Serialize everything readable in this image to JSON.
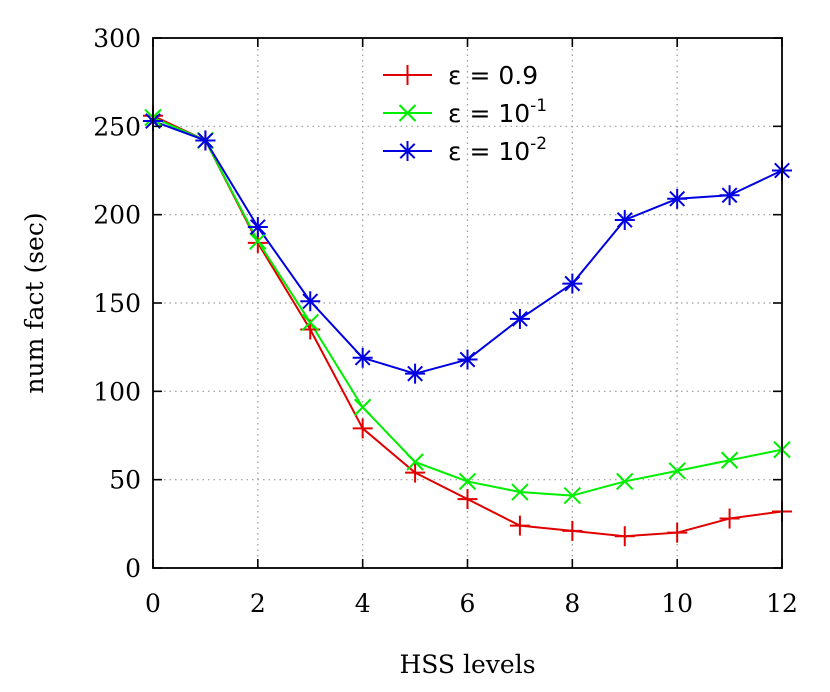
{
  "chart_data": {
    "type": "line",
    "xlabel": "HSS levels",
    "ylabel": "num fact (sec)",
    "xlim": [
      0,
      12
    ],
    "ylim": [
      0,
      300
    ],
    "xticks": [
      0,
      2,
      4,
      6,
      8,
      10,
      12
    ],
    "yticks": [
      0,
      50,
      100,
      150,
      200,
      250,
      300
    ],
    "grid": true,
    "legend_position": "top-center",
    "x": [
      0,
      1,
      2,
      3,
      4,
      5,
      6,
      7,
      8,
      9,
      10,
      11,
      12
    ],
    "series": [
      {
        "name": "ε = 0.9",
        "label_base": "ε = 0.9",
        "label_sup": "",
        "color": "#e00000",
        "marker": "plus",
        "values": [
          256,
          242,
          184,
          135,
          79,
          54,
          39,
          24,
          21,
          18,
          20,
          28,
          32
        ]
      },
      {
        "name": "ε = 10^-1",
        "label_base": "ε = 10",
        "label_sup": "-1",
        "color": "#00ee00",
        "marker": "x",
        "values": [
          255,
          242,
          185,
          139,
          91,
          60,
          49,
          43,
          41,
          49,
          55,
          61,
          67
        ]
      },
      {
        "name": "ε = 10^-2",
        "label_base": "ε = 10",
        "label_sup": "-2",
        "color": "#0000e0",
        "marker": "star",
        "values": [
          253,
          242,
          193,
          151,
          119,
          110,
          118,
          141,
          161,
          197,
          209,
          211,
          225
        ]
      }
    ]
  }
}
